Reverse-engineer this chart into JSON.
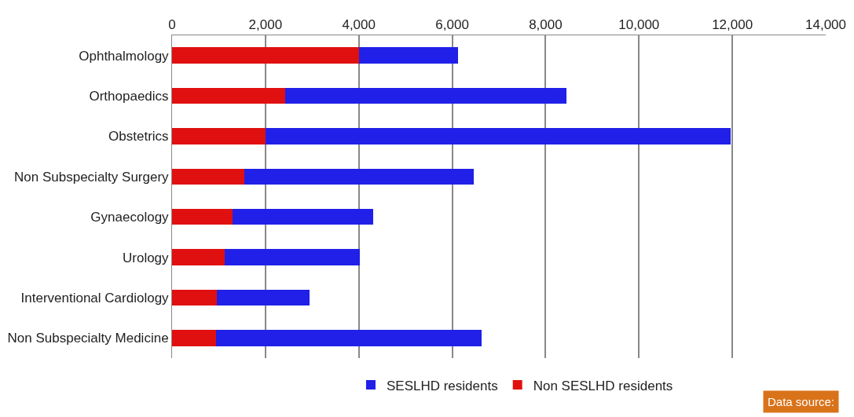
{
  "chart_data": {
    "type": "bar",
    "orientation": "horizontal",
    "stacked": true,
    "categories": [
      "Ophthalmology",
      "Orthopaedics",
      "Obstetrics",
      "Non Subspecialty Surgery",
      "Gynaecology",
      "Urology",
      "Interventional Cardiology",
      "Non Subspecialty Medicine"
    ],
    "series": [
      {
        "name": "Non SESLHD residents",
        "color": "#e01010",
        "values": [
          4000,
          2420,
          2000,
          1540,
          1300,
          1130,
          960,
          940
        ]
      },
      {
        "name": "SESLHD residents",
        "color": "#2020e8",
        "values": [
          2130,
          6020,
          9970,
          4920,
          3000,
          2890,
          1990,
          5690
        ]
      }
    ],
    "xlim": [
      0,
      14000
    ],
    "xticks": [
      {
        "value": 0,
        "label": "0"
      },
      {
        "value": 2000,
        "label": "2,000"
      },
      {
        "value": 4000,
        "label": "4,000"
      },
      {
        "value": 6000,
        "label": "6,000"
      },
      {
        "value": 8000,
        "label": "8,000"
      },
      {
        "value": 10000,
        "label": "10,000"
      },
      {
        "value": 12000,
        "label": "12,000"
      },
      {
        "value": 14000,
        "label": "14,000"
      }
    ],
    "grid": "x",
    "legend": "bottom",
    "annotations": [
      "Data source:"
    ]
  }
}
